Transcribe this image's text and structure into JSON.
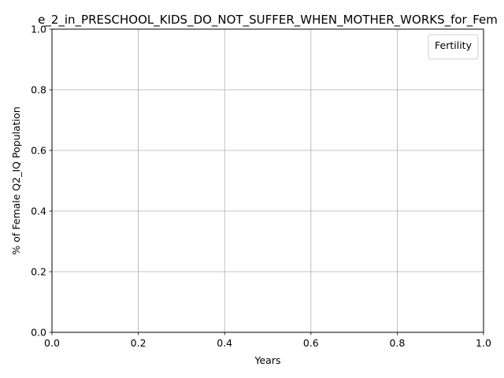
{
  "chart_data": {
    "type": "line",
    "title": "e_2_in_PRESCHOOL_KIDS_DO_NOT_SUFFER_WHEN_MOTHER_WORKS_for_Fem",
    "xlabel": "Years",
    "ylabel": "% of Female Q2_IQ Population",
    "xlim": [
      0.0,
      1.0
    ],
    "ylim": [
      0.0,
      1.0
    ],
    "x_ticks": [
      "0.0",
      "0.2",
      "0.4",
      "0.6",
      "0.8",
      "1.0"
    ],
    "y_ticks": [
      "0.0",
      "0.2",
      "0.4",
      "0.6",
      "0.8",
      "1.0"
    ],
    "grid": true,
    "legend": {
      "title": "Fertility",
      "placement": "top-right",
      "entries": []
    },
    "series": []
  }
}
